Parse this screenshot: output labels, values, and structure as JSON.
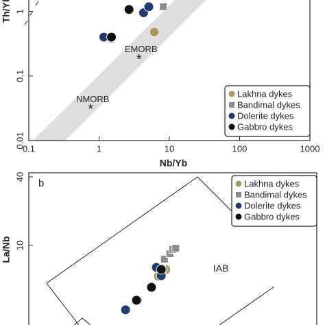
{
  "chart_data": [
    {
      "type": "scatter",
      "xscale": "log",
      "yscale": "log",
      "xlabel": "Nb/Yb",
      "ylabel": "Th/Yb",
      "xlim": [
        0.1,
        1000
      ],
      "ylim": [
        0.01,
        1.5
      ],
      "xticks": [
        0.1,
        1,
        10,
        100,
        1000
      ],
      "yticks": [
        0.01,
        0.1,
        1
      ],
      "legend": "lower right",
      "annotations": [
        {
          "text": "EMORB",
          "x": 3.7,
          "y": 0.19
        },
        {
          "text": "NMORB",
          "x": 0.76,
          "y": 0.032
        }
      ],
      "series": [
        {
          "name": "Lakhna dykes",
          "color": "#a89a5e",
          "marker": "circle",
          "x": [
            6.1,
            1.5
          ],
          "y": [
            0.48,
            0.38
          ]
        },
        {
          "name": "Bandimal dykes",
          "color": "#8c8c8c",
          "marker": "square",
          "x": [
            8.2
          ],
          "y": [
            1.18
          ]
        },
        {
          "name": "Dolerite dykes",
          "color": "#1f3a6e",
          "marker": "circle",
          "x": [
            1.17,
            4.3,
            5.1
          ],
          "y": [
            0.4,
            0.95,
            1.18
          ]
        },
        {
          "name": "Gabbro dykes",
          "color": "#111111",
          "marker": "circle",
          "x": [
            2.67,
            1.5
          ],
          "y": [
            1.07,
            0.4
          ]
        }
      ]
    },
    {
      "type": "scatter",
      "yscale": "log",
      "panel_label": "b",
      "ylabel": "La/Nb",
      "xlim": [
        0,
        1
      ],
      "ylim": [
        2,
        40
      ],
      "yticks": [
        10,
        40
      ],
      "legend": "upper right",
      "annotations": [
        {
          "text": "IAB",
          "x": 0.667,
          "y": 6.2
        }
      ],
      "series": [
        {
          "name": "Lakhna dykes",
          "color": "#a89a5e",
          "marker": "circle",
          "x": [
            0.378,
            0.45,
            0.476
          ],
          "y": [
            3.3,
            5.36,
            6.15
          ]
        },
        {
          "name": "Bandimal dykes",
          "color": "#8c8c8c",
          "marker": "square",
          "x": [
            0.471,
            0.49,
            0.5,
            0.51
          ],
          "y": [
            7.58,
            8.47,
            9.2,
            9.46
          ]
        },
        {
          "name": "Dolerite dykes",
          "color": "#1f3a6e",
          "marker": "circle",
          "x": [
            0.336,
            0.443,
            0.464,
            0.46
          ],
          "y": [
            2.72,
            6.41,
            6.15,
            5.43
          ]
        },
        {
          "name": "Gabbro dykes",
          "color": "#111111",
          "marker": "circle",
          "x": [
            0.374,
            0.426,
            0.46
          ],
          "y": [
            3.3,
            4.29,
            6.15
          ]
        }
      ]
    }
  ]
}
